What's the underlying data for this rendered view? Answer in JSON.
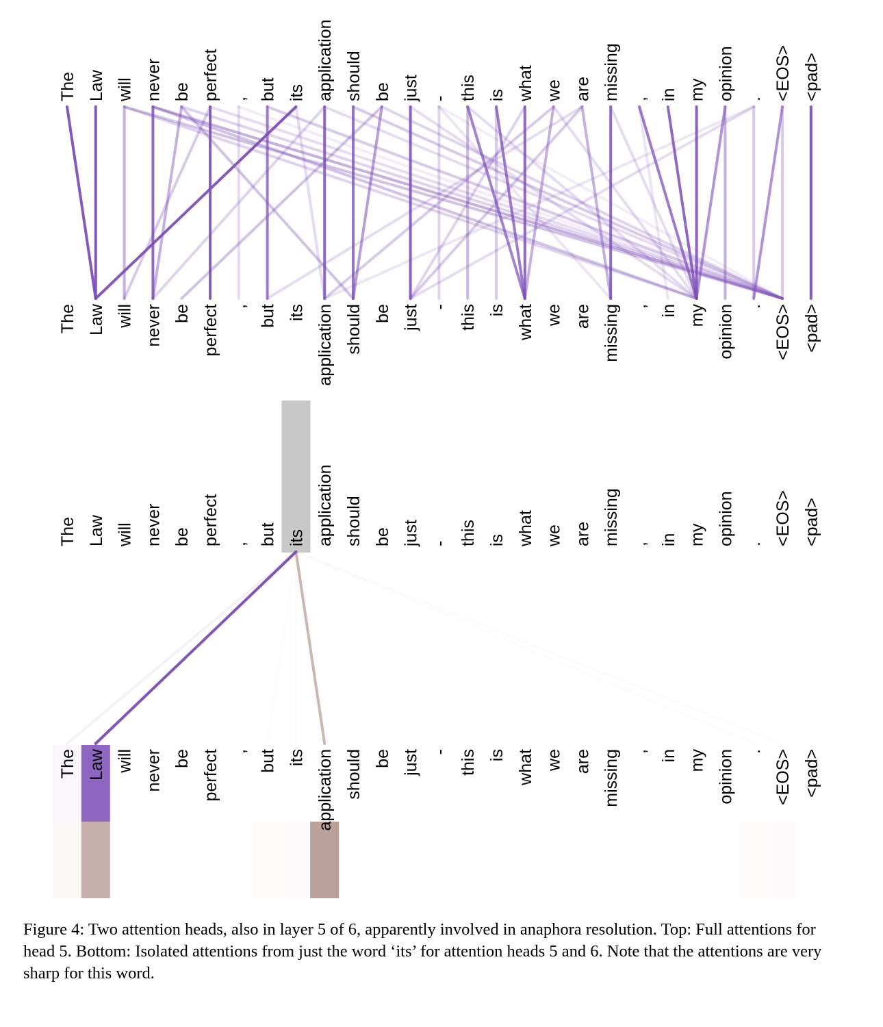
{
  "tokens": [
    "The",
    "Law",
    "will",
    "never",
    "be",
    "perfect",
    ",",
    "but",
    "its",
    "application",
    "should",
    "be",
    "just",
    "-",
    "this",
    "is",
    "what",
    "we",
    "are",
    "missing",
    ",",
    "in",
    "my",
    "opinion",
    ".",
    "<EOS>",
    "<pad>"
  ],
  "colors": {
    "head5": "#7e4fb8",
    "head6": "#a9867f",
    "highlight": "#c8c8c8",
    "law_box": "#8f5fbd"
  },
  "full_attention_head5": [
    {
      "from": 0,
      "to": 1,
      "w": 0.95
    },
    {
      "from": 1,
      "to": 1,
      "w": 0.95
    },
    {
      "from": 2,
      "to": 2,
      "w": 0.45
    },
    {
      "from": 2,
      "to": 25,
      "w": 0.35
    },
    {
      "from": 2,
      "to": 22,
      "w": 0.25
    },
    {
      "from": 3,
      "to": 3,
      "w": 0.85
    },
    {
      "from": 3,
      "to": 25,
      "w": 0.45
    },
    {
      "from": 3,
      "to": 22,
      "w": 0.35
    },
    {
      "from": 4,
      "to": 3,
      "w": 0.45
    },
    {
      "from": 4,
      "to": 10,
      "w": 0.35
    },
    {
      "from": 4,
      "to": 25,
      "w": 0.25
    },
    {
      "from": 5,
      "to": 5,
      "w": 0.9
    },
    {
      "from": 5,
      "to": 2,
      "w": 0.3
    },
    {
      "from": 5,
      "to": 25,
      "w": 0.2
    },
    {
      "from": 6,
      "to": 6,
      "w": 0.2
    },
    {
      "from": 6,
      "to": 25,
      "w": 0.1
    },
    {
      "from": 7,
      "to": 7,
      "w": 0.75
    },
    {
      "from": 7,
      "to": 25,
      "w": 0.3
    },
    {
      "from": 8,
      "to": 1,
      "w": 0.95
    },
    {
      "from": 8,
      "to": 9,
      "w": 0.2
    },
    {
      "from": 9,
      "to": 9,
      "w": 0.85
    },
    {
      "from": 9,
      "to": 3,
      "w": 0.25
    },
    {
      "from": 9,
      "to": 25,
      "w": 0.2
    },
    {
      "from": 10,
      "to": 10,
      "w": 0.8
    },
    {
      "from": 10,
      "to": 25,
      "w": 0.3
    },
    {
      "from": 11,
      "to": 10,
      "w": 0.55
    },
    {
      "from": 11,
      "to": 4,
      "w": 0.35
    },
    {
      "from": 11,
      "to": 25,
      "w": 0.25
    },
    {
      "from": 12,
      "to": 12,
      "w": 0.9
    },
    {
      "from": 12,
      "to": 22,
      "w": 0.2
    },
    {
      "from": 13,
      "to": 13,
      "w": 0.25
    },
    {
      "from": 13,
      "to": 19,
      "w": 0.15
    },
    {
      "from": 13,
      "to": 25,
      "w": 0.1
    },
    {
      "from": 14,
      "to": 16,
      "w": 0.7
    },
    {
      "from": 14,
      "to": 14,
      "w": 0.4
    },
    {
      "from": 14,
      "to": 22,
      "w": 0.2
    },
    {
      "from": 15,
      "to": 16,
      "w": 0.75
    },
    {
      "from": 15,
      "to": 15,
      "w": 0.3
    },
    {
      "from": 16,
      "to": 16,
      "w": 0.85
    },
    {
      "from": 16,
      "to": 12,
      "w": 0.25
    },
    {
      "from": 17,
      "to": 16,
      "w": 0.45
    },
    {
      "from": 17,
      "to": 9,
      "w": 0.3
    },
    {
      "from": 17,
      "to": 22,
      "w": 0.2
    },
    {
      "from": 18,
      "to": 19,
      "w": 0.45
    },
    {
      "from": 18,
      "to": 12,
      "w": 0.3
    },
    {
      "from": 18,
      "to": 7,
      "w": 0.2
    },
    {
      "from": 19,
      "to": 19,
      "w": 0.85
    },
    {
      "from": 19,
      "to": 22,
      "w": 0.2
    },
    {
      "from": 20,
      "to": 22,
      "w": 0.75
    },
    {
      "from": 20,
      "to": 21,
      "w": 0.15
    },
    {
      "from": 21,
      "to": 22,
      "w": 0.85
    },
    {
      "from": 22,
      "to": 22,
      "w": 0.9
    },
    {
      "from": 23,
      "to": 22,
      "w": 0.6
    },
    {
      "from": 23,
      "to": 23,
      "w": 0.45
    },
    {
      "from": 24,
      "to": 24,
      "w": 0.3
    },
    {
      "from": 24,
      "to": 12,
      "w": 0.2
    },
    {
      "from": 24,
      "to": 9,
      "w": 0.15
    },
    {
      "from": 25,
      "to": 24,
      "w": 0.6
    },
    {
      "from": 25,
      "to": 25,
      "w": 0.3
    },
    {
      "from": 26,
      "to": 26,
      "w": 0.95
    }
  ],
  "isolated_attention": {
    "source": 8,
    "head5": [
      {
        "to": 1,
        "w": 0.95
      },
      {
        "to": 0,
        "w": 0.05
      }
    ],
    "head6": [
      {
        "to": 9,
        "w": 0.6
      },
      {
        "to": 1,
        "w": 0.5
      },
      {
        "to": 0,
        "w": 0.04
      },
      {
        "to": 8,
        "w": 0.03
      },
      {
        "to": 25,
        "w": 0.03
      },
      {
        "to": 24,
        "w": 0.02
      },
      {
        "to": 7,
        "w": 0.02
      }
    ]
  },
  "caption": "Figure 4: Two attention heads, also in layer 5 of 6, apparently involved in anaphora resolution. Top: Full attentions for head 5. Bottom: Isolated attentions from just the word ‘its’ for attention heads 5 and 6. Note that the attentions are very sharp for this word."
}
